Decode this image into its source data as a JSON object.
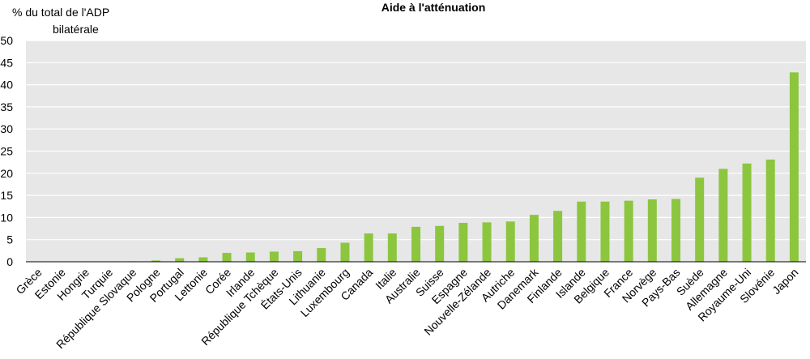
{
  "chart_data": {
    "type": "bar",
    "title": "Aide à l'atténuation",
    "ylabel_line1": "% du total de l'ADP",
    "ylabel_line2": "bilatérale",
    "xlabel": "",
    "ylim": [
      0,
      50
    ],
    "yticks": [
      0,
      5,
      10,
      15,
      20,
      25,
      30,
      35,
      40,
      45,
      50
    ],
    "grid": true,
    "bar_color": "#8cc63f",
    "plot_background": "#e7e7e7",
    "categories": [
      "Grèce",
      "Estonie",
      "Hongrie",
      "Turquie",
      "République Slovaque",
      "Pologne",
      "Portugal",
      "Lettonie",
      "Corée",
      "Irlande",
      "République Tchèque",
      "États-Unis",
      "Lithuanie",
      "Luxembourg",
      "Canada",
      "Italie",
      "Australie",
      "Suisse",
      "Espagne",
      "Nouvelle-Zélande",
      "Autriche",
      "Danemark",
      "Finlande",
      "Islande",
      "Belgique",
      "France",
      "Norvège",
      "Pays-Bas",
      "Suède",
      "Allemagne",
      "Royaume-Uni",
      "Slovénie",
      "Japon"
    ],
    "values": [
      0,
      0,
      0,
      0,
      0.1,
      0.3,
      0.8,
      1.0,
      2.0,
      2.1,
      2.3,
      2.4,
      3.1,
      4.3,
      6.4,
      6.4,
      7.9,
      8.1,
      8.8,
      8.9,
      9.1,
      10.6,
      11.5,
      13.6,
      13.6,
      13.8,
      14.1,
      14.2,
      19.0,
      21.0,
      22.2,
      23.1,
      42.8
    ]
  }
}
